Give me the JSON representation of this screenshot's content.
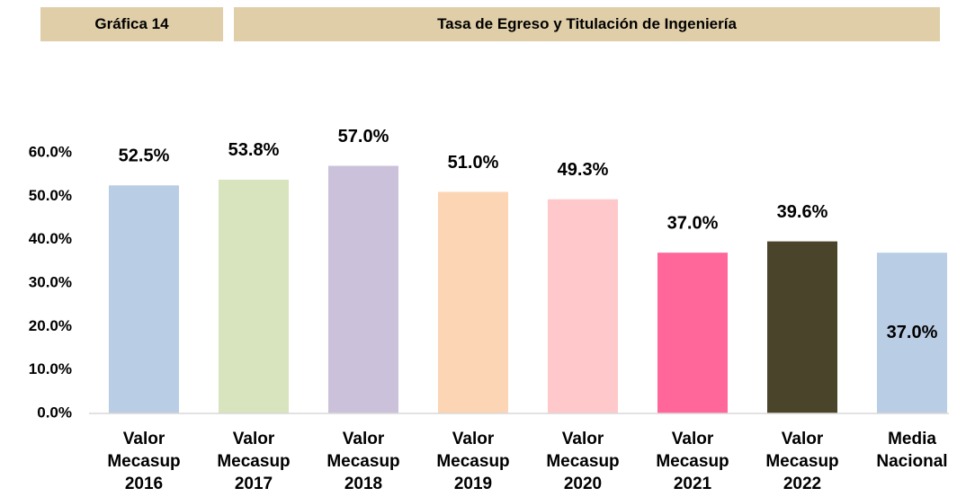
{
  "header": {
    "label": "Gráfica 14",
    "title": "Tasa de Egreso y Titulación de Ingeniería"
  },
  "chart_data": {
    "type": "bar",
    "categories": [
      "Valor Mecasup 2016",
      "Valor Mecasup 2017",
      "Valor Mecasup 2018",
      "Valor Mecasup 2019",
      "Valor Mecasup 2020",
      "Valor Mecasup 2021",
      "Valor Mecasup 2022",
      "Media Nacional"
    ],
    "values": [
      52.5,
      53.8,
      57.0,
      51.0,
      49.3,
      37.0,
      39.6,
      37.0
    ],
    "value_labels": [
      "52.5%",
      "53.8%",
      "57.0%",
      "51.0%",
      "49.3%",
      "37.0%",
      "39.6%",
      "37.0%"
    ],
    "colors": [
      "#b9cde5",
      "#d7e4bd",
      "#ccc1da",
      "#fcd5b5",
      "#ffc9cc",
      "#ff6699",
      "#4a452a",
      "#b9cde5"
    ],
    "ylim": [
      0,
      60
    ],
    "yticks": [
      {
        "value": 0,
        "label": "0.0%"
      },
      {
        "value": 10,
        "label": "10.0%"
      },
      {
        "value": 20,
        "label": "20.0%"
      },
      {
        "value": 30,
        "label": "30.0%"
      },
      {
        "value": 40,
        "label": "40.0%"
      },
      {
        "value": 50,
        "label": "50.0%"
      },
      {
        "value": 60,
        "label": "60.0%"
      }
    ],
    "grid": false
  }
}
